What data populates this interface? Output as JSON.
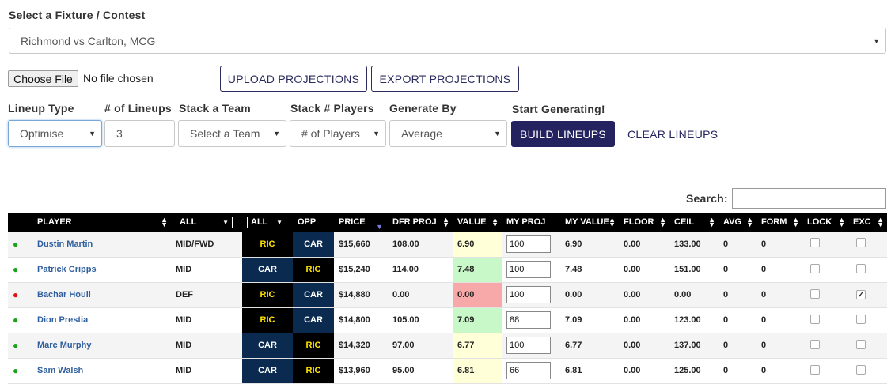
{
  "fixture": {
    "label": "Select a Fixture / Contest",
    "value": "Richmond vs Carlton, MCG"
  },
  "file": {
    "button": "Choose File",
    "status": "No file chosen"
  },
  "buttons": {
    "upload": "UPLOAD PROJECTIONS",
    "export": "EXPORT PROJECTIONS",
    "build": "BUILD LINEUPS",
    "clear": "CLEAR LINEUPS"
  },
  "controls": {
    "lineup_type": {
      "label": "Lineup Type",
      "value": "Optimise"
    },
    "num_lineups": {
      "label": "# of Lineups",
      "value": "3"
    },
    "stack_team": {
      "label": "Stack a Team",
      "value": "Select a Team"
    },
    "stack_players": {
      "label": "Stack # Players",
      "value": "# of Players"
    },
    "generate_by": {
      "label": "Generate By",
      "value": "Average"
    },
    "start": {
      "label": "Start Generating!"
    }
  },
  "search": {
    "label": "Search:",
    "value": ""
  },
  "table": {
    "headers": {
      "player": "PLAYER",
      "pos_filter": "ALL",
      "team_filter": "ALL",
      "opp": "OPP",
      "price": "PRICE",
      "dfr_proj": "DFR PROJ",
      "value": "VALUE",
      "my_proj": "MY PROJ",
      "my_value": "MY VALUE",
      "floor": "FLOOR",
      "ceil": "CEIL",
      "avg": "AVG",
      "form": "FORM",
      "lock": "LOCK",
      "exc": "EXC"
    },
    "rows": [
      {
        "status": "green",
        "player": "Dustin Martin",
        "pos": "MID/FWD",
        "team": "RIC",
        "opp": "CAR",
        "price": "$15,660",
        "dfr_proj": "108.00",
        "value": "6.90",
        "value_color": "y",
        "my_proj": "100",
        "my_value": "6.90",
        "floor": "0.00",
        "ceil": "133.00",
        "avg": "0",
        "form": "0",
        "lock": false,
        "exc": false
      },
      {
        "status": "green",
        "player": "Patrick Cripps",
        "pos": "MID",
        "team": "CAR",
        "opp": "RIC",
        "price": "$15,240",
        "dfr_proj": "114.00",
        "value": "7.48",
        "value_color": "g",
        "my_proj": "100",
        "my_value": "7.48",
        "floor": "0.00",
        "ceil": "151.00",
        "avg": "0",
        "form": "0",
        "lock": false,
        "exc": false
      },
      {
        "status": "red",
        "player": "Bachar Houli",
        "pos": "DEF",
        "team": "RIC",
        "opp": "CAR",
        "price": "$14,880",
        "dfr_proj": "0.00",
        "value": "0.00",
        "value_color": "r",
        "my_proj": "100",
        "my_value": "0.00",
        "floor": "0.00",
        "ceil": "0.00",
        "avg": "0",
        "form": "0",
        "lock": false,
        "exc": true
      },
      {
        "status": "green",
        "player": "Dion Prestia",
        "pos": "MID",
        "team": "RIC",
        "opp": "CAR",
        "price": "$14,800",
        "dfr_proj": "105.00",
        "value": "7.09",
        "value_color": "g",
        "my_proj": "88",
        "my_value": "7.09",
        "floor": "0.00",
        "ceil": "123.00",
        "avg": "0",
        "form": "0",
        "lock": false,
        "exc": false
      },
      {
        "status": "green",
        "player": "Marc Murphy",
        "pos": "MID",
        "team": "CAR",
        "opp": "RIC",
        "price": "$14,320",
        "dfr_proj": "97.00",
        "value": "6.77",
        "value_color": "y",
        "my_proj": "100",
        "my_value": "6.77",
        "floor": "0.00",
        "ceil": "137.00",
        "avg": "0",
        "form": "0",
        "lock": false,
        "exc": false
      },
      {
        "status": "green",
        "player": "Sam Walsh",
        "pos": "MID",
        "team": "CAR",
        "opp": "RIC",
        "price": "$13,960",
        "dfr_proj": "95.00",
        "value": "6.81",
        "value_color": "y",
        "my_proj": "66",
        "my_value": "6.81",
        "floor": "0.00",
        "ceil": "125.00",
        "avg": "0",
        "form": "0",
        "lock": false,
        "exc": false
      }
    ]
  }
}
